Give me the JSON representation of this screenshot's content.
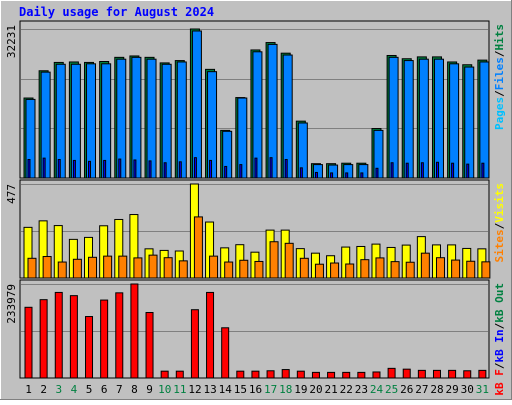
{
  "title": "Daily usage for August 2024",
  "colors": {
    "background": "#c0c0c0",
    "title": "#0000ff",
    "hits": "#008040",
    "files": "#0080ff",
    "pages": "#00c0ff",
    "visits": "#ffff00",
    "sites": "#ff8000",
    "kb_f": "#ff0000",
    "kb_in": "#0000ff",
    "kb_out": "#008040",
    "weekend_day": "#008040",
    "weekday": "#000000"
  },
  "chart_data": [
    {
      "type": "bar",
      "panel": "top",
      "max_label": "32231",
      "ylim": [
        0,
        32231
      ],
      "legend": [
        {
          "text": "Pages",
          "color_key": "pages"
        },
        {
          "text": "/",
          "color_key": "slash"
        },
        {
          "text": "Files",
          "color_key": "files"
        },
        {
          "text": "/",
          "color_key": "slash"
        },
        {
          "text": "Hits",
          "color_key": "hits"
        }
      ],
      "legend_placement": "right",
      "categories": [
        "1",
        "2",
        "3",
        "4",
        "5",
        "6",
        "7",
        "8",
        "9",
        "10",
        "11",
        "12",
        "13",
        "14",
        "15",
        "16",
        "17",
        "18",
        "19",
        "20",
        "21",
        "22",
        "23",
        "24",
        "25",
        "26",
        "27",
        "28",
        "29",
        "30",
        "31"
      ],
      "series": [
        {
          "name": "Hits",
          "color_key": "hits",
          "values": [
            17300,
            23200,
            25000,
            25100,
            25000,
            25200,
            26100,
            26400,
            26100,
            24900,
            25400,
            32231,
            23500,
            10300,
            17400,
            27700,
            29300,
            27000,
            12300,
            3100,
            3100,
            3200,
            3200,
            10700,
            26500,
            25800,
            26200,
            26200,
            25100,
            24500,
            25500
          ]
        },
        {
          "name": "Files",
          "color_key": "files",
          "values": [
            17000,
            22900,
            24600,
            24600,
            24700,
            24700,
            25700,
            26100,
            25700,
            24600,
            25100,
            31800,
            23000,
            10100,
            17300,
            27300,
            28900,
            26600,
            11900,
            2900,
            2800,
            2900,
            2900,
            10300,
            26100,
            25400,
            25700,
            25700,
            24700,
            24000,
            25100
          ]
        },
        {
          "name": "Pages",
          "color_key": "pages",
          "values": [
            4000,
            4300,
            4000,
            3800,
            3600,
            3800,
            4100,
            3900,
            3700,
            3300,
            3500,
            4400,
            3800,
            2500,
            2900,
            4300,
            4400,
            4000,
            2200,
            1200,
            1100,
            1100,
            1100,
            2100,
            3300,
            3200,
            3300,
            3400,
            3200,
            3000,
            3200
          ]
        }
      ]
    },
    {
      "type": "bar",
      "panel": "middle",
      "max_label": "477",
      "ylim": [
        0,
        477
      ],
      "legend": [
        {
          "text": "Sites",
          "color_key": "sites"
        },
        {
          "text": "/",
          "color_key": "slash"
        },
        {
          "text": "Visits",
          "color_key": "visits"
        }
      ],
      "legend_placement": "right",
      "categories": [
        "1",
        "2",
        "3",
        "4",
        "5",
        "6",
        "7",
        "8",
        "9",
        "10",
        "11",
        "12",
        "13",
        "14",
        "15",
        "16",
        "17",
        "18",
        "19",
        "20",
        "21",
        "22",
        "23",
        "24",
        "25",
        "26",
        "27",
        "28",
        "29",
        "30",
        "31"
      ],
      "series": [
        {
          "name": "Visits",
          "color_key": "visits",
          "values": [
            257,
            290,
            266,
            196,
            206,
            265,
            297,
            322,
            148,
            140,
            137,
            477,
            284,
            153,
            169,
            131,
            243,
            243,
            149,
            126,
            113,
            157,
            160,
            172,
            155,
            167,
            210,
            168,
            168,
            150,
            148
          ]
        },
        {
          "name": "Sites",
          "color_key": "sites",
          "values": [
            100,
            109,
            81,
            95,
            105,
            111,
            111,
            102,
            116,
            103,
            87,
            310,
            111,
            81,
            90,
            84,
            184,
            176,
            100,
            70,
            76,
            71,
            93,
            102,
            83,
            80,
            126,
            103,
            91,
            85,
            82
          ]
        }
      ]
    },
    {
      "type": "bar",
      "panel": "bottom",
      "max_label": "233979",
      "ylim": [
        0,
        233979
      ],
      "legend": [
        {
          "text": "kB F",
          "color_key": "kb_f"
        },
        {
          "text": "/",
          "color_key": "slash"
        },
        {
          "text": "kB In",
          "color_key": "kb_in"
        },
        {
          "text": "/",
          "color_key": "slash"
        },
        {
          "text": "kB Out",
          "color_key": "kb_out"
        }
      ],
      "legend_placement": "right",
      "categories": [
        "1",
        "2",
        "3",
        "4",
        "5",
        "6",
        "7",
        "8",
        "9",
        "10",
        "11",
        "12",
        "13",
        "14",
        "15",
        "16",
        "17",
        "18",
        "19",
        "20",
        "21",
        "22",
        "23",
        "24",
        "25",
        "26",
        "27",
        "28",
        "29",
        "30",
        "31"
      ],
      "series": [
        {
          "name": "kB F",
          "color_key": "kb_f",
          "values": [
            176000,
            195000,
            213000,
            205000,
            153000,
            194000,
            212000,
            233979,
            163000,
            17000,
            17000,
            170000,
            213000,
            125000,
            17000,
            17000,
            18000,
            21000,
            17000,
            14000,
            14000,
            14000,
            14000,
            15000,
            24000,
            22000,
            19000,
            19000,
            19000,
            18000,
            19000
          ]
        }
      ]
    }
  ],
  "x_axis": {
    "weekend_days": [
      "3",
      "4",
      "10",
      "11",
      "17",
      "18",
      "24",
      "25",
      "31"
    ]
  }
}
